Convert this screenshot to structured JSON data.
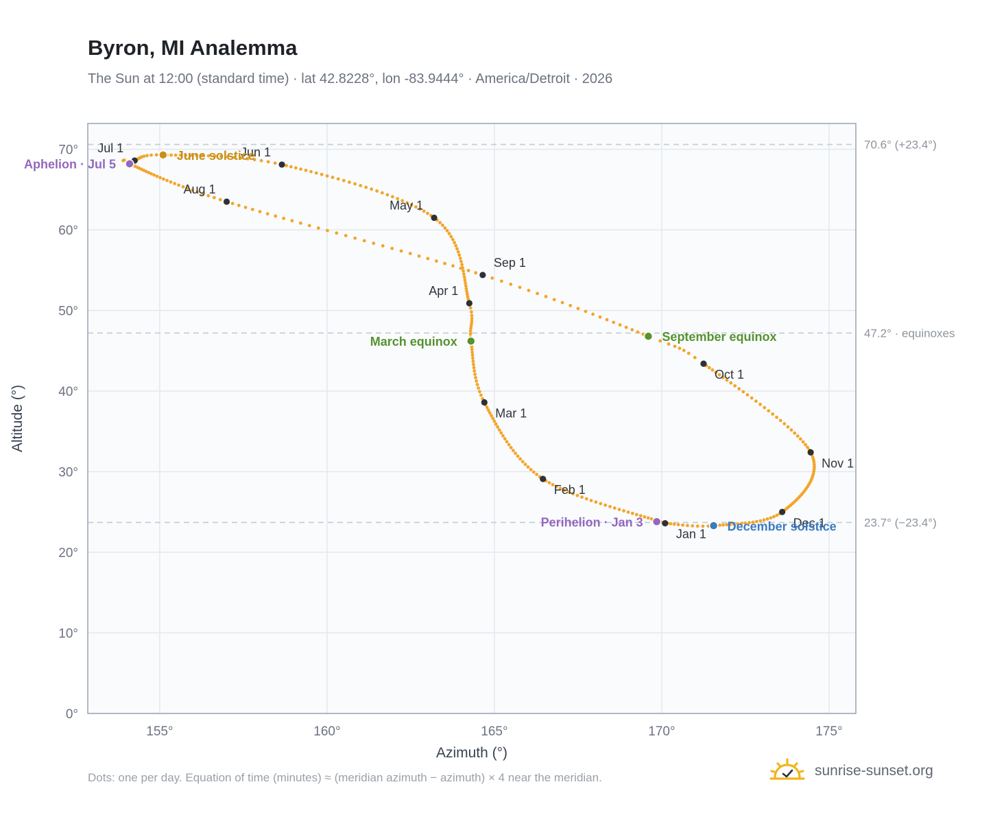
{
  "title": "Byron, MI Analemma",
  "subtitle": "The Sun at 12:00 (standard time) · lat 42.8228°, lon -83.9444° · America/Detroit · 2026",
  "footnote": "Dots: one per day. Equation of time (minutes) ≈ (meridian azimuth − azimuth) × 4 near the meridian.",
  "brand": {
    "text": "sunrise-sunset.org",
    "icon": "sun-logo-icon",
    "color": "#f2b51c"
  },
  "colors": {
    "curve": "#f3a52a",
    "month_marker": "#2d3035",
    "solstice_june": "#c8901a",
    "equinox": "#57922e",
    "solstice_december": "#3c7bbf",
    "apsis": "#9467bd",
    "grid": "#e5e8ec",
    "plot_bg": "#f9fbfd",
    "frame": "#99a3b1",
    "reference": "#c3cbd3"
  },
  "chart_data": {
    "type": "scatter",
    "xlabel": "Azimuth (°)",
    "ylabel": "Altitude (°)",
    "xlim": [
      152.85,
      175.8
    ],
    "ylim": [
      0,
      73.2
    ],
    "xticks": [
      155,
      160,
      165,
      170,
      175
    ],
    "yticks": [
      0,
      10,
      20,
      30,
      40,
      50,
      60,
      70
    ],
    "xtick_labels": [
      "155°",
      "160°",
      "165°",
      "170°",
      "175°"
    ],
    "ytick_labels": [
      "0°",
      "10°",
      "20°",
      "30°",
      "40°",
      "50°",
      "60°",
      "70°"
    ],
    "grid": true,
    "dots_per_day": 1,
    "curve_knots": [
      {
        "doy": 1,
        "az": 170.1,
        "alt": 23.6
      },
      {
        "doy": 32,
        "az": 166.45,
        "alt": 29.1
      },
      {
        "doy": 60,
        "az": 164.7,
        "alt": 38.6
      },
      {
        "doy": 79,
        "az": 164.3,
        "alt": 46.2
      },
      {
        "doy": 91,
        "az": 164.25,
        "alt": 50.9
      },
      {
        "doy": 121,
        "az": 163.2,
        "alt": 61.5
      },
      {
        "doy": 152,
        "az": 158.65,
        "alt": 68.1
      },
      {
        "doy": 172,
        "az": 155.1,
        "alt": 69.3
      },
      {
        "doy": 182,
        "az": 154.25,
        "alt": 68.6
      },
      {
        "doy": 186,
        "az": 154.1,
        "alt": 68.2
      },
      {
        "doy": 213,
        "az": 157.0,
        "alt": 63.5
      },
      {
        "doy": 244,
        "az": 164.65,
        "alt": 54.4
      },
      {
        "doy": 266,
        "az": 169.6,
        "alt": 46.8
      },
      {
        "doy": 274,
        "az": 171.25,
        "alt": 43.4
      },
      {
        "doy": 305,
        "az": 174.45,
        "alt": 32.4
      },
      {
        "doy": 335,
        "az": 173.6,
        "alt": 25.0
      },
      {
        "doy": 355,
        "az": 171.55,
        "alt": 23.3
      },
      {
        "doy": 366,
        "az": 170.1,
        "alt": 23.6
      }
    ],
    "month_markers": [
      {
        "label": "Jan 1",
        "az": 170.1,
        "alt": 23.6,
        "label_pos": "below-right"
      },
      {
        "label": "Feb 1",
        "az": 166.45,
        "alt": 29.1,
        "label_pos": "below-right"
      },
      {
        "label": "Mar 1",
        "az": 164.7,
        "alt": 38.6,
        "label_pos": "below-right"
      },
      {
        "label": "Apr 1",
        "az": 164.25,
        "alt": 50.9,
        "label_pos": "above-left"
      },
      {
        "label": "May 1",
        "az": 163.2,
        "alt": 61.5,
        "label_pos": "above-left"
      },
      {
        "label": "Jun 1",
        "az": 158.65,
        "alt": 68.1,
        "label_pos": "above-left"
      },
      {
        "label": "Jul 1",
        "az": 154.25,
        "alt": 68.6,
        "label_pos": "above-left"
      },
      {
        "label": "Aug 1",
        "az": 157.0,
        "alt": 63.5,
        "label_pos": "above-left"
      },
      {
        "label": "Sep 1",
        "az": 164.65,
        "alt": 54.4,
        "label_pos": "above-right"
      },
      {
        "label": "Oct 1",
        "az": 171.25,
        "alt": 43.4,
        "label_pos": "below-right"
      },
      {
        "label": "Nov 1",
        "az": 174.45,
        "alt": 32.4,
        "label_pos": "below-right"
      },
      {
        "label": "Dec 1",
        "az": 173.6,
        "alt": 25.0,
        "label_pos": "below-right"
      }
    ],
    "events": [
      {
        "label": "June solstice",
        "az": 155.1,
        "alt": 69.3,
        "color": "#c8901a",
        "label_pos": "right"
      },
      {
        "label": "March equinox",
        "az": 164.3,
        "alt": 46.2,
        "color": "#57922e",
        "label_pos": "left"
      },
      {
        "label": "September equinox",
        "az": 169.6,
        "alt": 46.8,
        "color": "#57922e",
        "label_pos": "right"
      },
      {
        "label": "December solstice",
        "az": 171.55,
        "alt": 23.3,
        "color": "#3c7bbf",
        "label_pos": "right"
      },
      {
        "label": "Perihelion · Jan 3",
        "az": 169.85,
        "alt": 23.8,
        "color": "#9467bd",
        "label_pos": "left"
      },
      {
        "label": "Aphelion · Jul 5",
        "az": 154.1,
        "alt": 68.2,
        "color": "#9467bd",
        "label_pos": "left"
      }
    ],
    "reference_lines": [
      {
        "alt": 70.6,
        "label": "70.6° (+23.4°)"
      },
      {
        "alt": 47.2,
        "label": "47.2° · equinoxes"
      },
      {
        "alt": 23.7,
        "label": "23.7° (−23.4°)"
      }
    ]
  }
}
